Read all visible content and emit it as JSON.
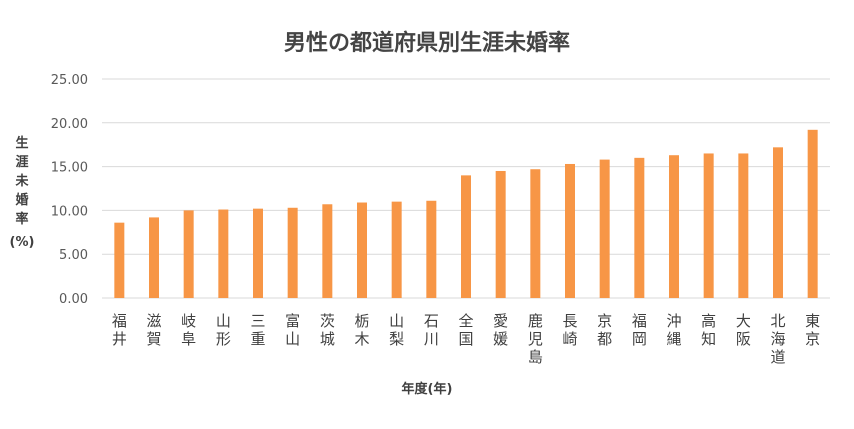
{
  "chart_data": {
    "type": "bar",
    "title": "男性の都道府県別生涯未婚率",
    "xlabel": "年度(年)",
    "ylabel": "生涯未婚率",
    "ylabel_unit": "(%)",
    "ylim": [
      0,
      25
    ],
    "yticks": [
      "0.00",
      "5.00",
      "10.00",
      "15.00",
      "20.00",
      "25.00"
    ],
    "grid": true,
    "bar_color": "#F79646",
    "categories": [
      "福井",
      "滋賀",
      "岐阜",
      "山形",
      "三重",
      "富山",
      "茨城",
      "栃木",
      "山梨",
      "石川",
      "全国",
      "愛媛",
      "鹿児島",
      "長崎",
      "京都",
      "福岡",
      "沖縄",
      "高知",
      "大阪",
      "北海道",
      "東京"
    ],
    "values": [
      8.6,
      9.2,
      10.0,
      10.1,
      10.2,
      10.3,
      10.7,
      10.9,
      11.0,
      11.1,
      14.0,
      14.5,
      14.7,
      15.3,
      15.8,
      16.0,
      16.3,
      16.5,
      16.5,
      17.2,
      19.2
    ]
  }
}
